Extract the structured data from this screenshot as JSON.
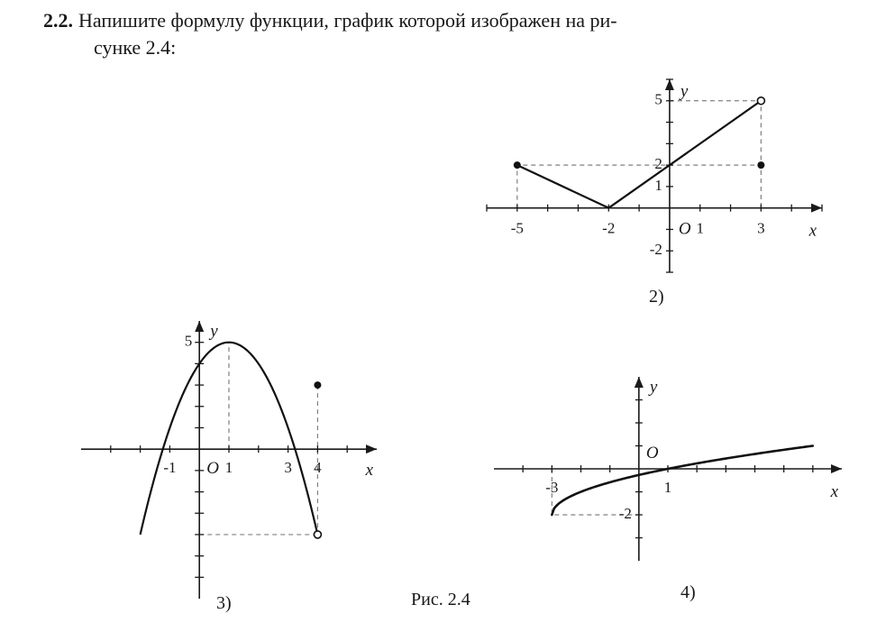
{
  "heading": {
    "number": "2.2.",
    "line1": "Напишите формулу функции, график которой изображен на ри-",
    "line2": "сунке 2.4:"
  },
  "figure_caption": "Рис. 2.4",
  "plots": {
    "p2": {
      "sublabel": "2)",
      "xlim": [
        -6,
        5
      ],
      "ylim": [
        -3,
        6
      ],
      "xticks": [
        -5,
        -2,
        1,
        3
      ],
      "yticks": [
        -2,
        1,
        2,
        5
      ],
      "polyline": [
        [
          -5,
          2
        ],
        [
          -2,
          0
        ],
        [
          3,
          5
        ]
      ],
      "closed_points": [
        [
          -5,
          2
        ],
        [
          3,
          2
        ]
      ],
      "open_points": [
        [
          3,
          5
        ]
      ],
      "dashed_lines": [
        [
          [
            -5,
            0
          ],
          [
            -5,
            2
          ],
          [
            3,
            2
          ],
          [
            3,
            0
          ]
        ],
        [
          [
            0,
            5
          ],
          [
            3,
            5
          ],
          [
            3,
            2
          ]
        ]
      ],
      "axis_labels": {
        "x": "x",
        "y": "y",
        "origin": "O"
      },
      "colors": {
        "axis": "#1a1a1a",
        "curve": "#111111",
        "dash": "#808080",
        "bg": "#ffffff",
        "tick_text": "#1a1a1a"
      },
      "line_width": 2.2,
      "tick_fontsize": 17,
      "label_fontsize": 19,
      "marker_radius": 4
    },
    "p3": {
      "sublabel": "3)",
      "xlim": [
        -4,
        6
      ],
      "ylim": [
        -7,
        6
      ],
      "xticks": [
        -1,
        1,
        3,
        4
      ],
      "yticks": [
        5
      ],
      "xtick_labels": {
        "-1": "-1",
        "1": "1",
        "3": "3",
        "4": "4"
      },
      "y_halfticks_pos": [
        1,
        2,
        3,
        4,
        5
      ],
      "y_halfticks_neg": [
        -1,
        -2,
        -3,
        -4,
        -5,
        -6
      ],
      "parabola": {
        "vertex": [
          1,
          5
        ],
        "a": -1,
        "x_from": -2,
        "x_to": 4
      },
      "closed_points": [
        [
          4,
          3
        ]
      ],
      "open_points": [
        [
          4,
          -4
        ]
      ],
      "dashed_lines": [
        [
          [
            1,
            0
          ],
          [
            1,
            5
          ]
        ],
        [
          [
            4,
            3
          ],
          [
            4,
            -4
          ]
        ],
        [
          [
            0,
            -4
          ],
          [
            4,
            -4
          ]
        ]
      ],
      "axis_labels": {
        "x": "x",
        "y": "y",
        "origin": "O"
      },
      "colors": {
        "axis": "#1a1a1a",
        "curve": "#111111",
        "dash": "#808080",
        "bg": "#ffffff",
        "tick_text": "#1a1a1a"
      },
      "line_width": 2.2,
      "tick_fontsize": 17,
      "label_fontsize": 19,
      "marker_radius": 4
    },
    "p4": {
      "sublabel": "4)",
      "xlim": [
        -5,
        7
      ],
      "ylim": [
        -4,
        4
      ],
      "xticks": [
        -3,
        1
      ],
      "yticks": [
        -2
      ],
      "x_halfticks": [
        -4,
        -3,
        -2,
        -1,
        1,
        2,
        3,
        4,
        5,
        6
      ],
      "y_halfticks": [
        -3,
        -2,
        -1,
        1,
        2,
        3
      ],
      "sqrt_curve": {
        "shift": 3,
        "yoffset": -2,
        "x_from": -3,
        "x_to": 6
      },
      "dashed_lines": [
        [
          [
            -3,
            0
          ],
          [
            -3,
            -2
          ],
          [
            0,
            -2
          ]
        ]
      ],
      "axis_labels": {
        "x": "x",
        "y": "y",
        "origin": "O"
      },
      "colors": {
        "axis": "#1a1a1a",
        "curve": "#111111",
        "dash": "#808080",
        "bg": "#ffffff",
        "tick_text": "#1a1a1a"
      },
      "line_width": 2.6,
      "tick_fontsize": 17,
      "label_fontsize": 19,
      "marker_radius": 4
    }
  }
}
